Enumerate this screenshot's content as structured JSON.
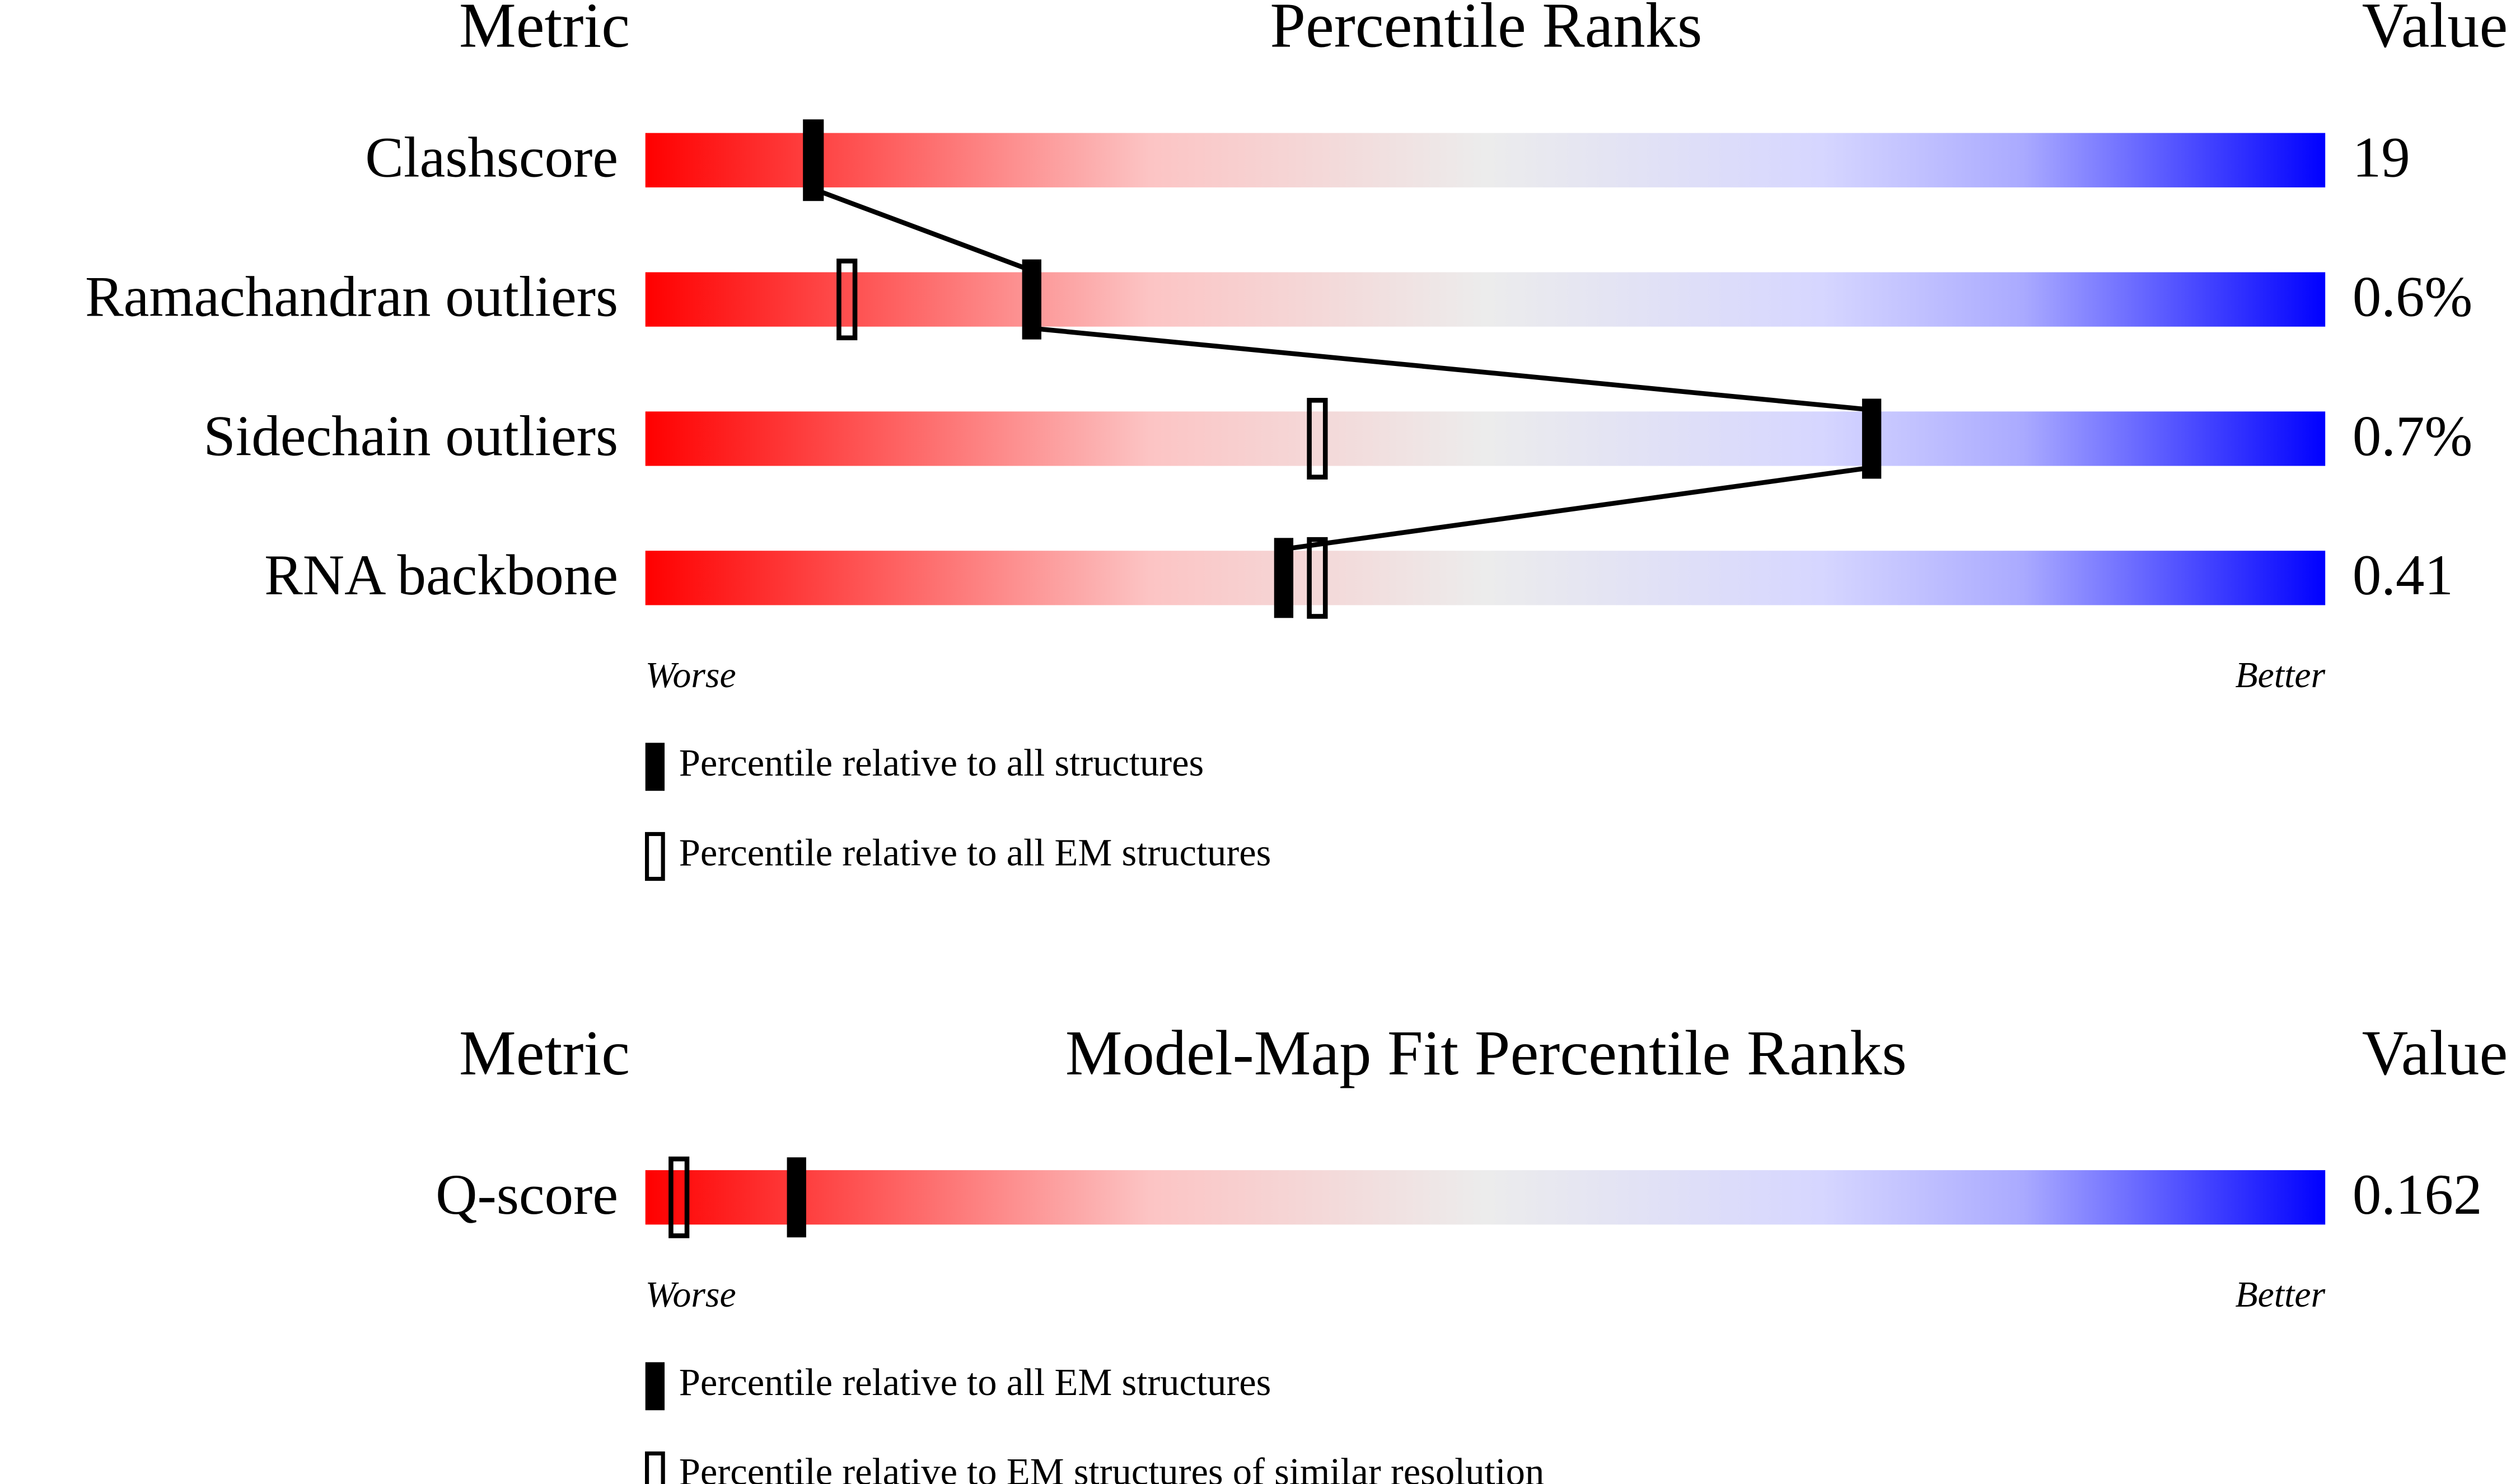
{
  "chart_data": [
    {
      "type": "percentile-slider",
      "metric_header": "Metric",
      "title": "Percentile Ranks",
      "value_header": "Value",
      "categories": [
        "Clashscore",
        "Ramachandran outliers",
        "Sidechain outliers",
        "RNA backbone"
      ],
      "metric_values": [
        "19",
        "0.6%",
        "0.7%",
        "0.41"
      ],
      "xlim": [
        0,
        100
      ],
      "worse_label": "Worse",
      "better_label": "Better",
      "series": [
        {
          "name": "Percentile relative to all structures",
          "color": "#000000",
          "values": [
            10,
            23,
            73,
            38
          ]
        },
        {
          "name": "Percentile relative to all EM structures",
          "color": "#000000",
          "values": [
            10,
            12,
            40,
            40
          ]
        }
      ]
    },
    {
      "type": "percentile-slider",
      "metric_header": "Metric",
      "title": "Model-Map Fit Percentile Ranks",
      "value_header": "Value",
      "categories": [
        "Q-score"
      ],
      "metric_values": [
        "0.162"
      ],
      "xlim": [
        0,
        100
      ],
      "worse_label": "Worse",
      "better_label": "Better",
      "series": [
        {
          "name": "Percentile relative to all EM structures",
          "color": "#000000",
          "values": [
            9
          ]
        },
        {
          "name": "Percentile relative to EM structures of similar resolution",
          "color": "#000000",
          "values": [
            2
          ]
        }
      ]
    }
  ]
}
